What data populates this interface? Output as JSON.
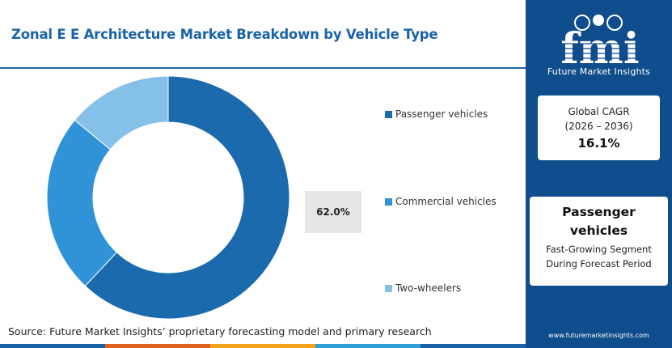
{
  "header": {
    "title": "Zonal E E Architecture Market Breakdown by Vehicle Type"
  },
  "chart_data": {
    "type": "pie",
    "donut": true,
    "categories": [
      "Passenger vehicles",
      "Commercial vehicles",
      "Two-wheelers"
    ],
    "values": [
      62.0,
      24.0,
      14.0
    ],
    "colors": [
      "#1a6aad",
      "#3093d8",
      "#84c0e8"
    ],
    "callout_label": "62.0%",
    "legend_position": "right"
  },
  "source": "Source: Future Market Insights’ proprietary forecasting model and primary research",
  "sidebar": {
    "logo_text": "fmi",
    "logo_caption": "Future Market Insights",
    "cagr_label_line1": "Global CAGR",
    "cagr_label_line2": "(2026 – 2036)",
    "cagr_value": "16.1%",
    "segment_title_line1": "Passenger",
    "segment_title_line2": "vehicles",
    "segment_sub_line1": "Fast-Growing Segment",
    "segment_sub_line2": "During Forecast Period",
    "url": "www.futuremarketinsights.com"
  },
  "colors": {
    "brand_blue": "#1a63a8",
    "sidebar_bg": "#0f4d8c",
    "bottom_strip": [
      "#1a63a8",
      "#e0621e",
      "#f2a31b",
      "#2f9fd8",
      "#1a63a8"
    ]
  }
}
